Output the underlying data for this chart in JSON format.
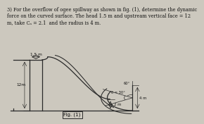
{
  "title_text": "3) For the overflow of ogee spillway as shown in fig. (1), determine the dynamic\nforce on the curved surface. The head 1.5 m and upstream vertical face = 12\nm, take Cₐ = 2.1  and the radius is 4 m.",
  "fig_label": "Fig. (1)",
  "label_head": "1.5 m",
  "label_height": "12m",
  "label_theta1": "θ = 30°",
  "label_theta2": "60°",
  "label_2m": "2 m",
  "label_4m": "4 m",
  "bg_color": "#ccc8be",
  "line_color": "#2a2a2a",
  "text_color": "#111111",
  "title_fontsize": 4.8,
  "fig_label_fontsize": 5.0,
  "xlim": [
    0,
    11
  ],
  "ylim": [
    -1.0,
    9.5
  ]
}
